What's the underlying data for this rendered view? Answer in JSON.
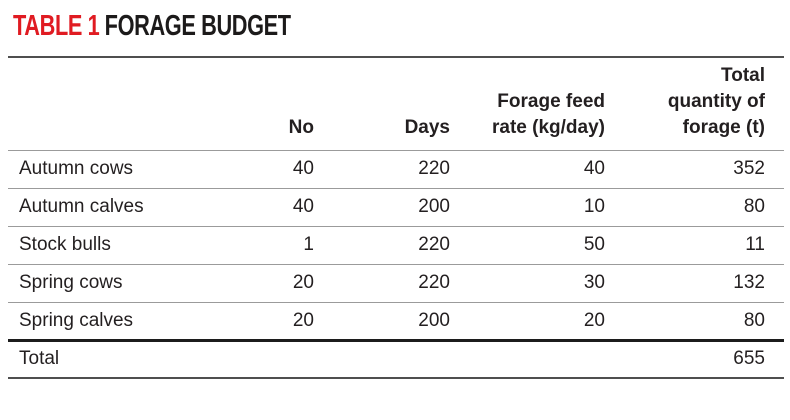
{
  "title": {
    "prefix": "TABLE 1",
    "text": "FORAGE BUDGET"
  },
  "colors": {
    "accent_red": "#e01b22",
    "ink": "#231f20",
    "row_divider": "#9b9b9b",
    "heavy_rule": "#1c1c1c",
    "outer_rule": "#4f4f4f"
  },
  "table": {
    "headers": [
      {
        "lines": []
      },
      {
        "lines": [
          "No"
        ]
      },
      {
        "lines": [
          "Days"
        ]
      },
      {
        "lines": [
          "Forage feed",
          "rate (kg/day)"
        ]
      },
      {
        "lines": [
          "Total",
          "quantity of",
          "forage (t)"
        ]
      }
    ],
    "rows": [
      {
        "label": "Autumn cows",
        "no": "40",
        "days": "220",
        "rate": "40",
        "total": "352"
      },
      {
        "label": "Autumn calves",
        "no": "40",
        "days": "200",
        "rate": "10",
        "total": "80"
      },
      {
        "label": "Stock bulls",
        "no": "1",
        "days": "220",
        "rate": "50",
        "total": "11"
      },
      {
        "label": "Spring cows",
        "no": "20",
        "days": "220",
        "rate": "30",
        "total": "132"
      },
      {
        "label": "Spring calves",
        "no": "20",
        "days": "200",
        "rate": "20",
        "total": "80"
      }
    ],
    "footer": {
      "label": "Total",
      "total": "655"
    }
  }
}
